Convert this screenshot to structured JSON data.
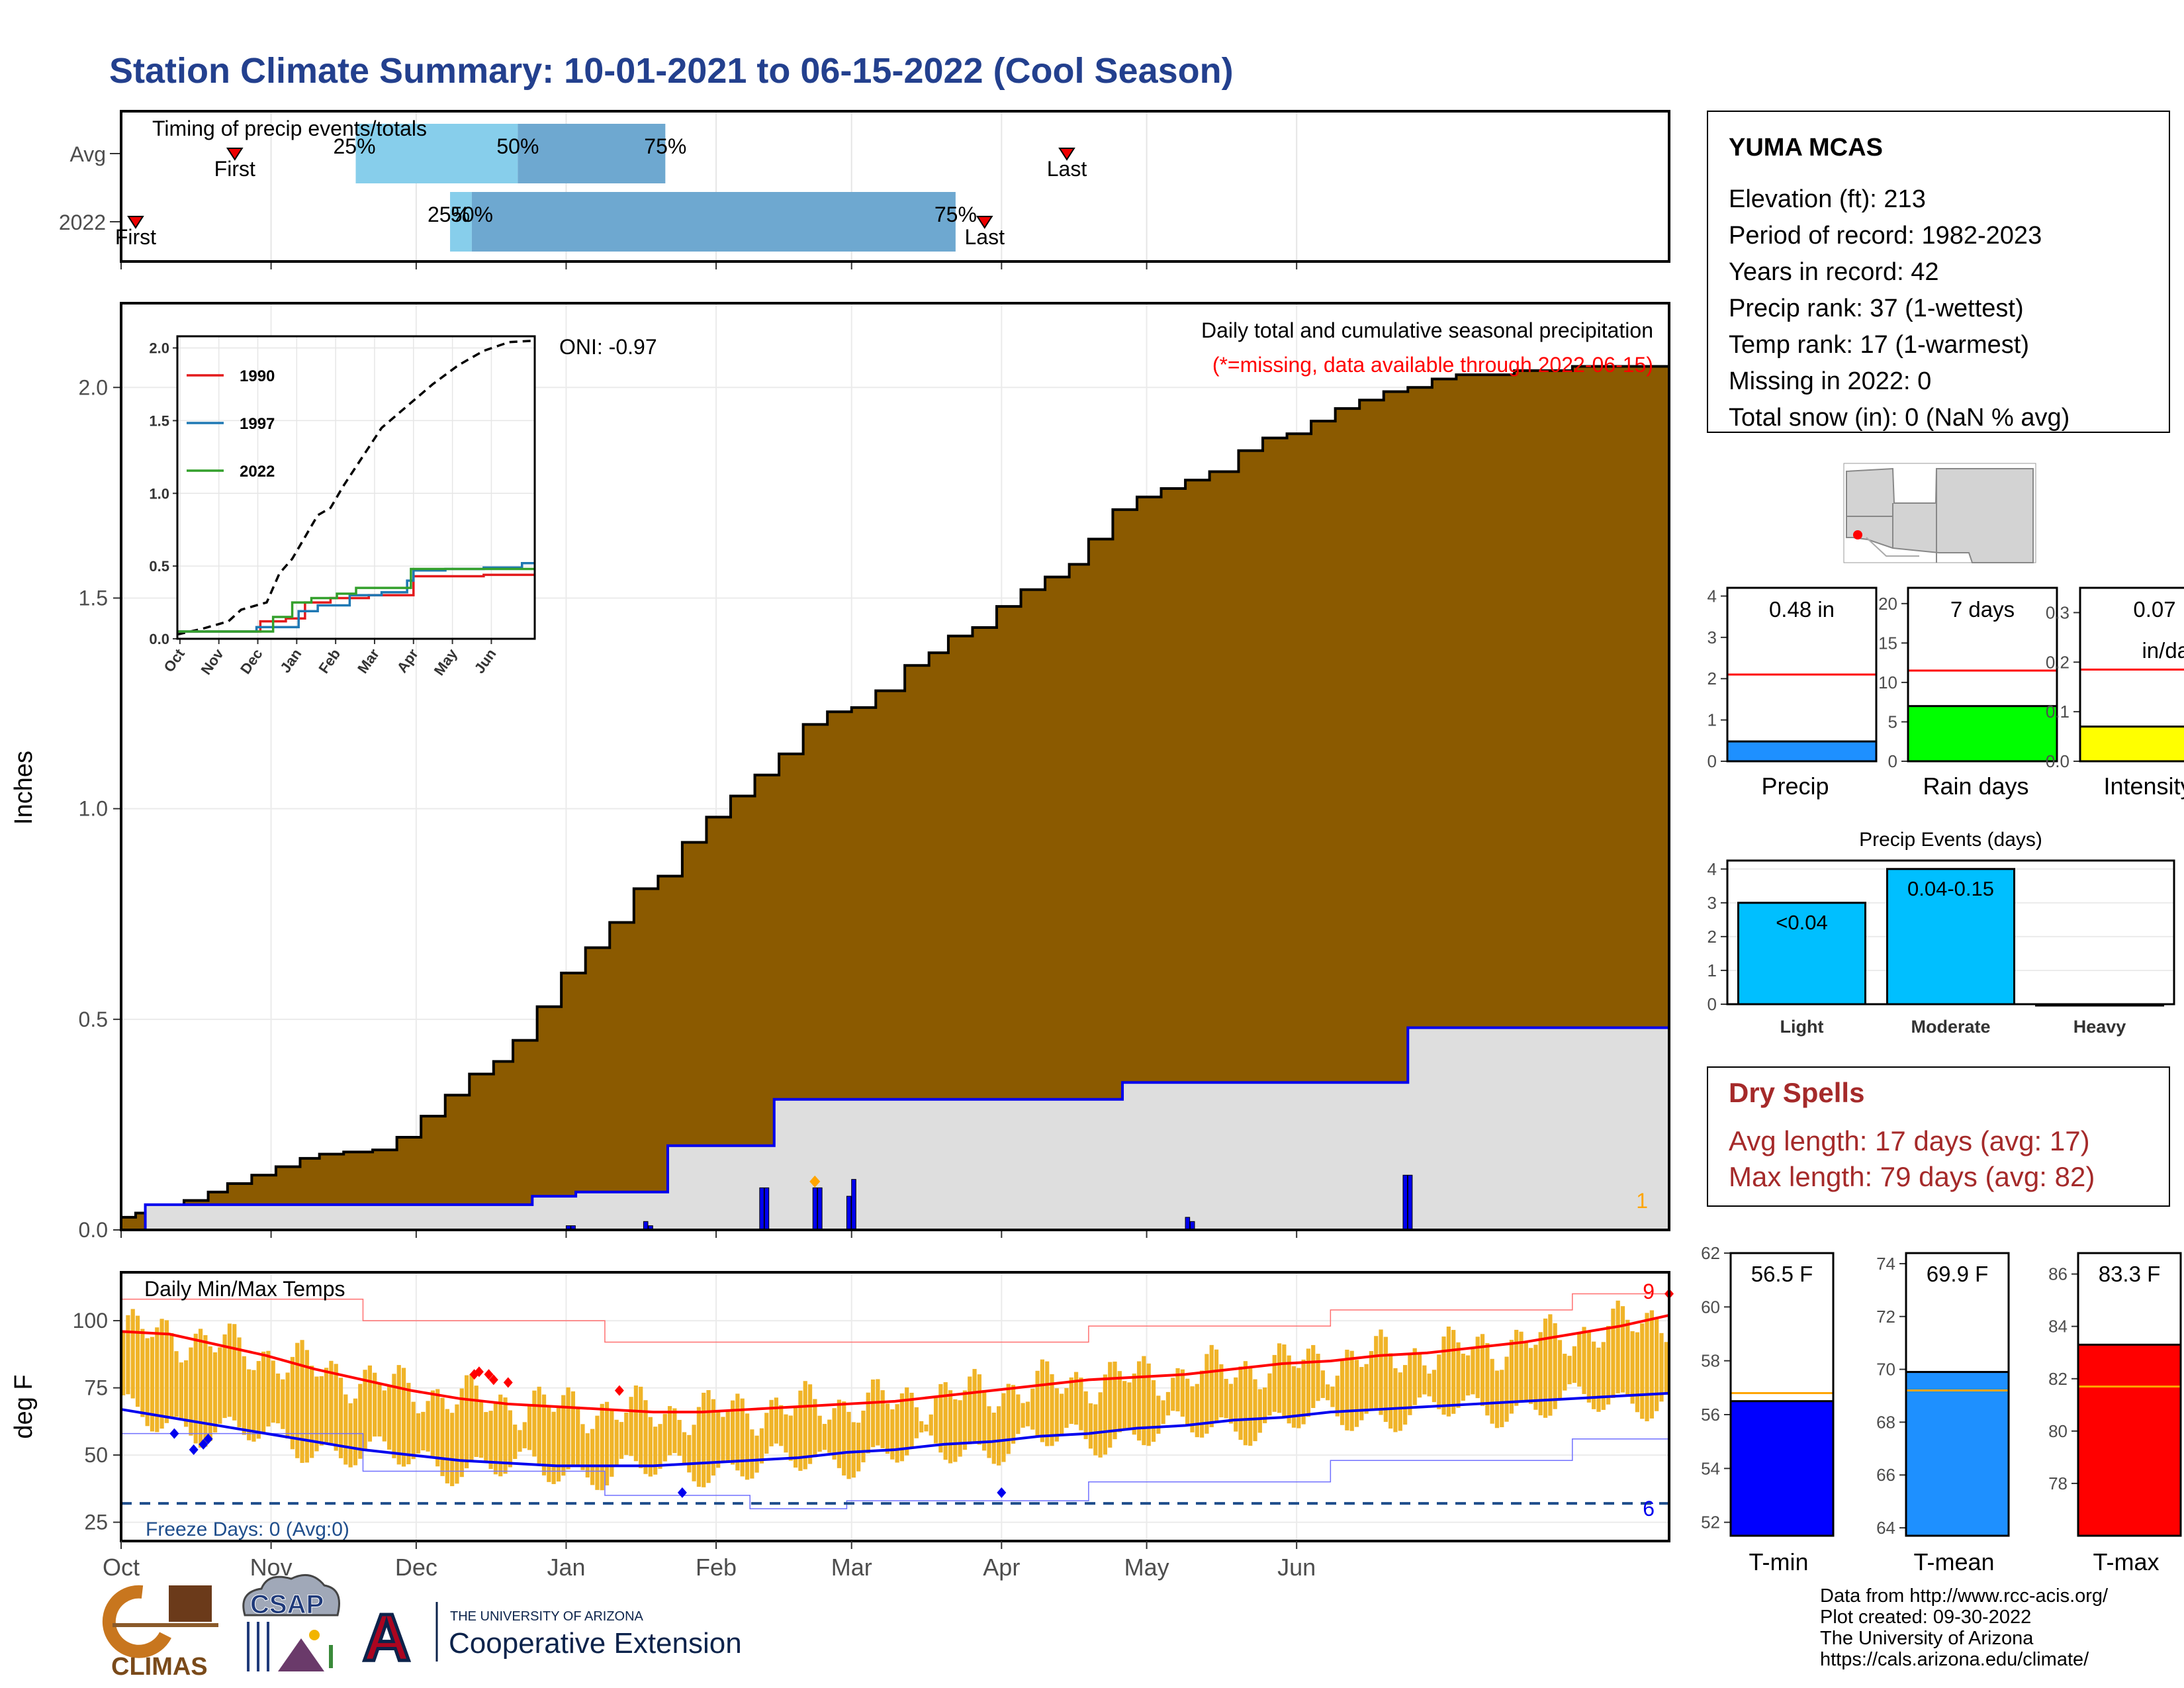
{
  "title": "Station Climate Summary: 10-01-2021 to 06-15-2022 (Cool Season)",
  "colors": {
    "title": "#23408e",
    "brown": "#8b5a00",
    "grey_fill": "#dedede",
    "blue": "#0000ee",
    "red": "#ff0000",
    "orange_bars": "#f0b428",
    "light_blue": "#87ceeb",
    "mid_blue": "#6ea8d0",
    "dry_red": "#a52a2a",
    "green": "#00ff00",
    "yellow": "#ffff00",
    "precip_blue": "#1e90ff",
    "event_blue": "#00bfff",
    "tmin_blue": "#0000ff",
    "tmean_blue": "#1e90ff",
    "tmax_red": "#ff0000",
    "avg_orange": "#ffa500",
    "freeze_line": "#1f4e8c"
  },
  "months": [
    "Oct",
    "Nov",
    "Dec",
    "Jan",
    "Feb",
    "Mar",
    "Apr",
    "May",
    "Jun"
  ],
  "timing": {
    "title": "Timing of precip events/totals",
    "rows": [
      "Avg",
      "2022"
    ],
    "avg": {
      "first_label": "First",
      "last_label": "Last",
      "first_day": 23.5,
      "last_day": 195.5,
      "p25_day": 48.5,
      "p50_day": 82,
      "p75_day": 112.5,
      "p25": "25%",
      "p50": "50%",
      "p75": "75%"
    },
    "y2022": {
      "first_label": "First",
      "last_label": "Last",
      "first_day": 3,
      "last_day": 178.5,
      "p25_day": 68,
      "p50_day": 72.5,
      "p75_day": 172.5,
      "p25": "25%",
      "p50": "50%",
      "p75": "75%"
    }
  },
  "precip": {
    "ylabel": "Inches",
    "yticks": [
      "0.0",
      "0.5",
      "1.0",
      "1.5",
      "2.0"
    ],
    "ylim": [
      0,
      2.2
    ],
    "annotation_title": "Daily total and cumulative seasonal precipitation",
    "annotation_missing": "(*=missing, data available through 2022-06-15)",
    "oni": "ONI: -0.97",
    "corner_count": "1",
    "avg_cumulative": [
      [
        0,
        0.03
      ],
      [
        3,
        0.04
      ],
      [
        8,
        0.05
      ],
      [
        13,
        0.07
      ],
      [
        18,
        0.09
      ],
      [
        22,
        0.11
      ],
      [
        27,
        0.13
      ],
      [
        32,
        0.15
      ],
      [
        37,
        0.17
      ],
      [
        41,
        0.18
      ],
      [
        46,
        0.185
      ],
      [
        52,
        0.19
      ],
      [
        57,
        0.22
      ],
      [
        62,
        0.27
      ],
      [
        67,
        0.32
      ],
      [
        72,
        0.37
      ],
      [
        77,
        0.4
      ],
      [
        81,
        0.45
      ],
      [
        86,
        0.53
      ],
      [
        91,
        0.61
      ],
      [
        96,
        0.67
      ],
      [
        101,
        0.73
      ],
      [
        106,
        0.81
      ],
      [
        111,
        0.84
      ],
      [
        116,
        0.92
      ],
      [
        121,
        0.98
      ],
      [
        126,
        1.03
      ],
      [
        131,
        1.08
      ],
      [
        136,
        1.13
      ],
      [
        141,
        1.2
      ],
      [
        146,
        1.23
      ],
      [
        151,
        1.24
      ],
      [
        156,
        1.28
      ],
      [
        162,
        1.34
      ],
      [
        167,
        1.37
      ],
      [
        171,
        1.41
      ],
      [
        176,
        1.43
      ],
      [
        181,
        1.48
      ],
      [
        186,
        1.52
      ],
      [
        191,
        1.55
      ],
      [
        196,
        1.58
      ],
      [
        200,
        1.64
      ],
      [
        205,
        1.71
      ],
      [
        210,
        1.74
      ],
      [
        215,
        1.76
      ],
      [
        220,
        1.78
      ],
      [
        225,
        1.8
      ],
      [
        231,
        1.85
      ],
      [
        236,
        1.88
      ],
      [
        241,
        1.89
      ],
      [
        246,
        1.92
      ],
      [
        251,
        1.95
      ],
      [
        256,
        1.97
      ],
      [
        261,
        1.99
      ],
      [
        266,
        2.0
      ],
      [
        271,
        2.02
      ],
      [
        276,
        2.03
      ],
      [
        283,
        2.03
      ],
      [
        288,
        2.04
      ],
      [
        294,
        2.04
      ],
      [
        300,
        2.05
      ],
      [
        314,
        2.05
      ],
      [
        320,
        2.05
      ]
    ],
    "cumulative_2022": [
      [
        0,
        0.0
      ],
      [
        5,
        0.06
      ],
      [
        73,
        0.06
      ],
      [
        85,
        0.08
      ],
      [
        94,
        0.09
      ],
      [
        109,
        0.09
      ],
      [
        113,
        0.2
      ],
      [
        129,
        0.2
      ],
      [
        135,
        0.31
      ],
      [
        202,
        0.31
      ],
      [
        207,
        0.35
      ],
      [
        262,
        0.35
      ],
      [
        266,
        0.48
      ],
      [
        320,
        0.48
      ]
    ],
    "daily_2022": [
      [
        92,
        0.01
      ],
      [
        93,
        0.01
      ],
      [
        108,
        0.02
      ],
      [
        109,
        0.01
      ],
      [
        132,
        0.1
      ],
      [
        133,
        0.1
      ],
      [
        143,
        0.1
      ],
      [
        144,
        0.1
      ],
      [
        150,
        0.08
      ],
      [
        151,
        0.12
      ],
      [
        220,
        0.03
      ],
      [
        221,
        0.02
      ],
      [
        265,
        0.13
      ],
      [
        266,
        0.13
      ]
    ],
    "daily_star_days": [
      143
    ]
  },
  "inset": {
    "yticks": [
      "0.0",
      "0.5",
      "1.0",
      "1.5",
      "2.0"
    ],
    "months": [
      "Oct",
      "Nov",
      "Dec",
      "Jan",
      "Feb",
      "Mar",
      "Apr",
      "May",
      "Jun"
    ],
    "legend": [
      {
        "name": "1990",
        "color": "#e31a1c"
      },
      {
        "name": "1997",
        "color": "#1f78b4"
      },
      {
        "name": "2022",
        "color": "#33a02c"
      }
    ],
    "avg": [
      [
        0,
        0.03
      ],
      [
        20,
        0.07
      ],
      [
        40,
        0.12
      ],
      [
        50,
        0.2
      ],
      [
        70,
        0.25
      ],
      [
        80,
        0.45
      ],
      [
        90,
        0.55
      ],
      [
        100,
        0.7
      ],
      [
        110,
        0.85
      ],
      [
        120,
        0.9
      ],
      [
        130,
        1.05
      ],
      [
        145,
        1.25
      ],
      [
        160,
        1.45
      ],
      [
        180,
        1.6
      ],
      [
        200,
        1.75
      ],
      [
        220,
        1.88
      ],
      [
        240,
        1.98
      ],
      [
        260,
        2.04
      ],
      [
        280,
        2.05
      ]
    ],
    "series": {
      "1990": [
        [
          0,
          0.05
        ],
        [
          60,
          0.05
        ],
        [
          65,
          0.12
        ],
        [
          85,
          0.14
        ],
        [
          100,
          0.25
        ],
        [
          120,
          0.28
        ],
        [
          150,
          0.3
        ],
        [
          180,
          0.3
        ],
        [
          185,
          0.43
        ],
        [
          210,
          0.43
        ],
        [
          240,
          0.44
        ],
        [
          280,
          0.44
        ]
      ],
      "1997": [
        [
          0,
          0.05
        ],
        [
          60,
          0.05
        ],
        [
          62,
          0.08
        ],
        [
          90,
          0.08
        ],
        [
          95,
          0.19
        ],
        [
          110,
          0.23
        ],
        [
          135,
          0.3
        ],
        [
          160,
          0.32
        ],
        [
          180,
          0.4
        ],
        [
          185,
          0.47
        ],
        [
          210,
          0.48
        ],
        [
          240,
          0.49
        ],
        [
          270,
          0.52
        ],
        [
          280,
          0.52
        ]
      ],
      "2022": [
        [
          0,
          0.05
        ],
        [
          70,
          0.05
        ],
        [
          75,
          0.15
        ],
        [
          90,
          0.25
        ],
        [
          105,
          0.28
        ],
        [
          125,
          0.31
        ],
        [
          140,
          0.35
        ],
        [
          178,
          0.35
        ],
        [
          183,
          0.48
        ],
        [
          280,
          0.48
        ]
      ]
    }
  },
  "temps": {
    "title": "Daily Min/Max Temps",
    "ylabel": "deg F",
    "yticks": [
      "25",
      "50",
      "75",
      "100"
    ],
    "freeze_label": "Freeze Days: 0 (Avg:0)",
    "count_hot": "9",
    "count_cold": "6",
    "avg_max": [
      [
        0,
        96
      ],
      [
        10,
        95
      ],
      [
        20,
        91
      ],
      [
        30,
        87
      ],
      [
        40,
        82
      ],
      [
        50,
        78
      ],
      [
        60,
        74
      ],
      [
        70,
        71
      ],
      [
        80,
        69
      ],
      [
        90,
        68
      ],
      [
        100,
        67
      ],
      [
        110,
        66
      ],
      [
        120,
        66
      ],
      [
        130,
        67
      ],
      [
        140,
        68
      ],
      [
        150,
        69
      ],
      [
        160,
        70
      ],
      [
        170,
        72
      ],
      [
        180,
        74
      ],
      [
        190,
        76
      ],
      [
        200,
        78
      ],
      [
        210,
        79
      ],
      [
        220,
        80
      ],
      [
        230,
        82
      ],
      [
        240,
        84
      ],
      [
        250,
        85
      ],
      [
        260,
        87
      ],
      [
        270,
        88
      ],
      [
        280,
        90
      ],
      [
        290,
        92
      ],
      [
        300,
        95
      ],
      [
        310,
        98
      ],
      [
        320,
        102
      ]
    ],
    "avg_min": [
      [
        0,
        67
      ],
      [
        10,
        64
      ],
      [
        20,
        61
      ],
      [
        30,
        58
      ],
      [
        40,
        55
      ],
      [
        50,
        52
      ],
      [
        60,
        50
      ],
      [
        70,
        48
      ],
      [
        80,
        47
      ],
      [
        90,
        46
      ],
      [
        100,
        46
      ],
      [
        110,
        46
      ],
      [
        120,
        47
      ],
      [
        130,
        48
      ],
      [
        140,
        49
      ],
      [
        150,
        51
      ],
      [
        160,
        52
      ],
      [
        170,
        54
      ],
      [
        180,
        55
      ],
      [
        190,
        57
      ],
      [
        200,
        58
      ],
      [
        210,
        60
      ],
      [
        220,
        61
      ],
      [
        230,
        63
      ],
      [
        240,
        64
      ],
      [
        250,
        66
      ],
      [
        260,
        67
      ],
      [
        270,
        68
      ],
      [
        280,
        69
      ],
      [
        290,
        70
      ],
      [
        300,
        71
      ],
      [
        310,
        72
      ],
      [
        320,
        73
      ]
    ],
    "record_max": [
      [
        0,
        108
      ],
      [
        50,
        100
      ],
      [
        100,
        92
      ],
      [
        150,
        92
      ],
      [
        200,
        98
      ],
      [
        250,
        104
      ],
      [
        300,
        110
      ],
      [
        320,
        113
      ]
    ],
    "record_min": [
      [
        0,
        58
      ],
      [
        50,
        44
      ],
      [
        100,
        35
      ],
      [
        130,
        30
      ],
      [
        150,
        33
      ],
      [
        200,
        40
      ],
      [
        250,
        48
      ],
      [
        300,
        56
      ],
      [
        320,
        62
      ]
    ],
    "hot_days": [
      [
        73,
        80
      ],
      [
        74,
        81
      ],
      [
        76,
        80
      ],
      [
        77,
        78
      ],
      [
        80,
        77
      ],
      [
        103,
        74
      ],
      [
        320,
        110
      ]
    ],
    "cold_days": [
      [
        11,
        58
      ],
      [
        15,
        52
      ],
      [
        17,
        54
      ],
      [
        18,
        56
      ],
      [
        116,
        36
      ],
      [
        182,
        36
      ]
    ]
  },
  "station": {
    "name": "YUMA MCAS",
    "lines": [
      "Elevation (ft): 213",
      "Period of record: 1982-2023",
      "Years in record: 42",
      "Precip rank: 37 (1-wettest)",
      "Temp rank: 17 (1-warmest)",
      "Missing in 2022: 0",
      "Total snow (in): 0 (NaN % avg)"
    ]
  },
  "summary_bars": [
    {
      "label": "Precip",
      "value_text": "0.48 in",
      "value": 0.48,
      "avg": 2.1,
      "ymax": 4.2,
      "yticks": [
        "0",
        "1",
        "2",
        "3",
        "4"
      ],
      "color": "#1e90ff"
    },
    {
      "label": "Rain days",
      "value_text": "7 days",
      "value": 7,
      "avg": 11.5,
      "ymax": 22,
      "yticks": [
        "0",
        "5",
        "10",
        "15",
        "20"
      ],
      "color": "#00ff00"
    },
    {
      "label": "Intensity",
      "value_text": "0.07",
      "value_text2": "in/day",
      "value": 0.07,
      "avg": 0.185,
      "ymax": 0.35,
      "yticks": [
        "0.0",
        "0.1",
        "0.2",
        "0.3"
      ],
      "color": "#ffff00"
    }
  ],
  "events": {
    "title": "Precip Events (days)",
    "yticks": [
      "0",
      "1",
      "2",
      "3",
      "4"
    ],
    "categories": [
      "Light",
      "Moderate",
      "Heavy"
    ],
    "values": [
      3,
      4,
      0
    ],
    "labels": [
      "<0.04",
      "0.04-0.15",
      ""
    ]
  },
  "dry_spells": {
    "title": "Dry Spells",
    "avg_line": "Avg length: 17 days (avg: 17)",
    "max_line": "Max length: 79 days (avg: 82)"
  },
  "temp_bars": [
    {
      "label": "T-min",
      "value_text": "56.5 F",
      "value": 56.5,
      "avg": 56.8,
      "ymin": 51.5,
      "ymax": 62,
      "yticks": [
        "52",
        "54",
        "56",
        "58",
        "60",
        "62"
      ],
      "color": "#0000ff"
    },
    {
      "label": "T-mean",
      "value_text": "69.9 F",
      "value": 69.9,
      "avg": 69.2,
      "ymin": 63.7,
      "ymax": 74.4,
      "yticks": [
        "64",
        "66",
        "68",
        "70",
        "72",
        "74"
      ],
      "color": "#1e90ff"
    },
    {
      "label": "T-max",
      "value_text": "83.3 F",
      "value": 83.3,
      "avg": 81.7,
      "ymin": 76,
      "ymax": 86.8,
      "yticks": [
        "78",
        "80",
        "82",
        "84",
        "86"
      ],
      "color": "#ff0000"
    }
  ],
  "credits": [
    "Data from http://www.rcc-acis.org/",
    "Plot created: 09-30-2022",
    "The University of Arizona",
    "https://cals.arizona.edu/climate/"
  ],
  "logos": {
    "climas": "CLIMAS",
    "csap": "CSAP",
    "ua_small": "THE UNIVERSITY OF ARIZONA",
    "ua_big": "Cooperative Extension",
    "ua_letter": "A"
  }
}
